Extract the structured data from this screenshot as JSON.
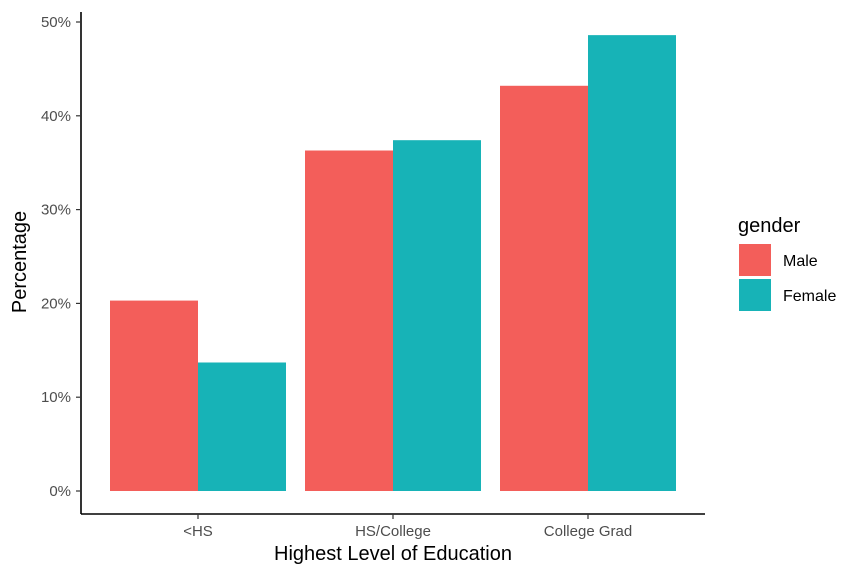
{
  "chart_data": {
    "type": "bar",
    "categories": [
      "<HS",
      "HS/College",
      "College Grad"
    ],
    "series": [
      {
        "name": "Male",
        "color": "#F35E5A",
        "values": [
          20.3,
          36.3,
          43.2
        ]
      },
      {
        "name": "Female",
        "color": "#17B3B7",
        "values": [
          13.7,
          37.4,
          48.6
        ]
      }
    ],
    "xlabel": "Highest Level of Education",
    "ylabel": "Percentage",
    "ylim": [
      0,
      50
    ],
    "yticks": [
      0,
      10,
      20,
      30,
      40,
      50
    ],
    "ytick_labels": [
      "0%",
      "10%",
      "20%",
      "30%",
      "40%",
      "50%"
    ],
    "legend": {
      "title": "gender",
      "position": "right"
    },
    "grid": false
  }
}
